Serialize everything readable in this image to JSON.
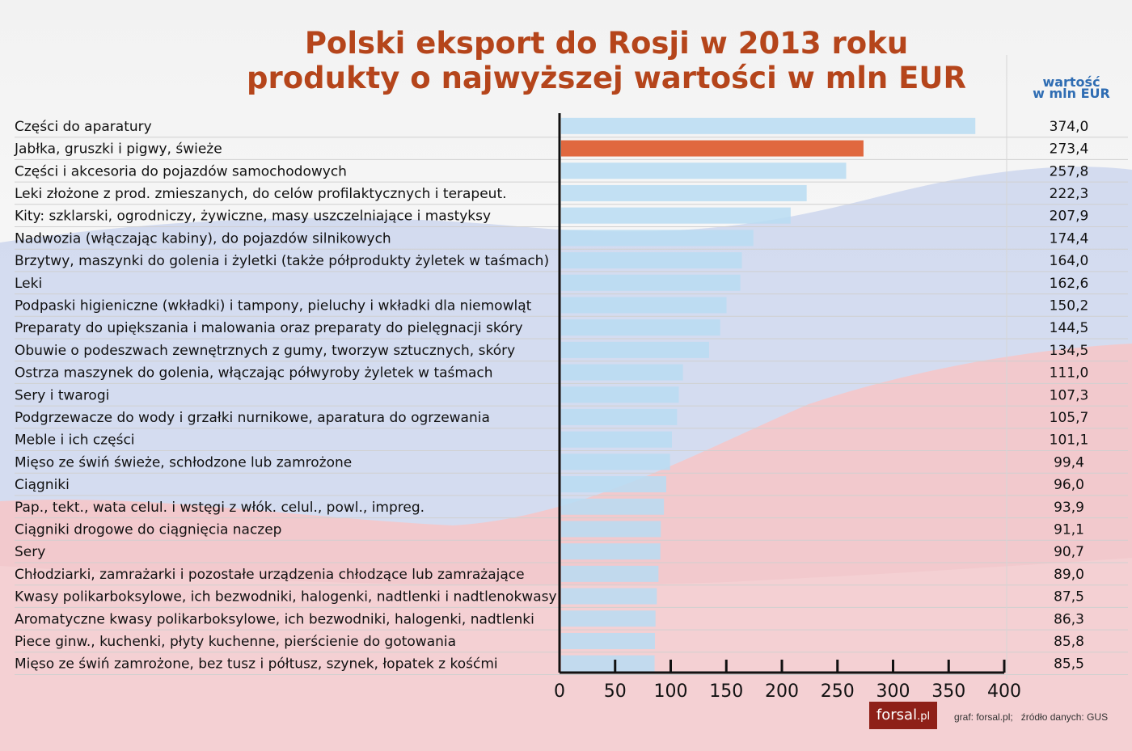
{
  "title_line1": "Polski eksport do Rosji w 2013 roku",
  "title_line2": "produkty o najwyższej wartości w mln EUR",
  "value_header_line1": "wartość",
  "value_header_line2": "w mln EUR",
  "logo": {
    "main": "forsal",
    "suffix": ".pl"
  },
  "credit": "graf: forsal.pl;   źródło danych: GUS",
  "colors": {
    "bar": "#b9dcf2",
    "highlight_bar": "#e0683f",
    "title": "#b5451b",
    "header": "#2f6db3",
    "logo_bg": "#8e2018"
  },
  "chart_data": {
    "type": "bar",
    "orientation": "horizontal",
    "title": "Polski eksport do Rosji w 2013 roku produkty o najwyższej wartości w mln EUR",
    "xlim": [
      0,
      400
    ],
    "xticks": [
      0,
      50,
      100,
      150,
      200,
      250,
      300,
      350,
      400
    ],
    "highlight_index": 1,
    "grid": false,
    "categories": [
      "Części do aparatury",
      "Jabłka, gruszki i pigwy, świeże",
      "Części i akcesoria do pojazdów samochodowych",
      "Leki złożone z prod. zmieszanych, do celów profilaktycznych i terapeut.",
      "Kity: szklarski, ogrodniczy, żywiczne, masy uszczelniające i mastyksy",
      "Nadwozia (włączając kabiny), do pojazdów silnikowych",
      "Brzytwy, maszynki do golenia i żyletki (także półprodukty żyletek w taśmach)",
      "Leki",
      "Podpaski higieniczne (wkładki) i tampony, pieluchy i wkładki dla niemowląt",
      "Preparaty do upiększania i malowania oraz preparaty do pielęgnacji skóry",
      "Obuwie o podeszwach zewnętrznych z gumy, tworzyw sztucznych, skóry",
      "Ostrza maszynek do golenia, włączając półwyroby żyletek w taśmach",
      "Sery i twarogi",
      "Podgrzewacze do wody i grzałki nurnikowe, aparatura do ogrzewania",
      "Meble i ich części",
      "Mięso ze świń świeże, schłodzone lub zamrożone",
      "Ciągniki",
      "Pap., tekt., wata celul. i wstęgi z włók. celul., powl., impreg.",
      "Ciągniki drogowe do ciągnięcia naczep",
      "Sery",
      "Chłodziarki, zamrażarki i pozostałe urządzenia chłodzące lub zamrażające",
      "Kwasy polikarboksylowe, ich bezwodniki, halogenki, nadtlenki i nadtlenokwasy",
      "Aromatyczne kwasy polikarboksylowe, ich bezwodniki, halogenki, nadtlenki",
      "Piece ginw., kuchenki, płyty kuchenne, pierścienie do gotowania",
      "Mięso ze świń zamrożone, bez tusz i półtusz, szynek, łopatek z kośćmi"
    ],
    "values": [
      374.0,
      273.4,
      257.8,
      222.3,
      207.9,
      174.4,
      164.0,
      162.6,
      150.2,
      144.5,
      134.5,
      111.0,
      107.3,
      105.7,
      101.1,
      99.4,
      96.0,
      93.9,
      91.1,
      90.7,
      89.0,
      87.5,
      86.3,
      85.8,
      85.5
    ],
    "value_labels": [
      "374,0",
      "273,4",
      "257,8",
      "222,3",
      "207,9",
      "174,4",
      "164,0",
      "162,6",
      "150,2",
      "144,5",
      "134,5",
      "111,0",
      "107,3",
      "105,7",
      "101,1",
      "99,4",
      "96,0",
      "93,9",
      "91,1",
      "90,7",
      "89,0",
      "87,5",
      "86,3",
      "85,8",
      "85,5"
    ]
  }
}
